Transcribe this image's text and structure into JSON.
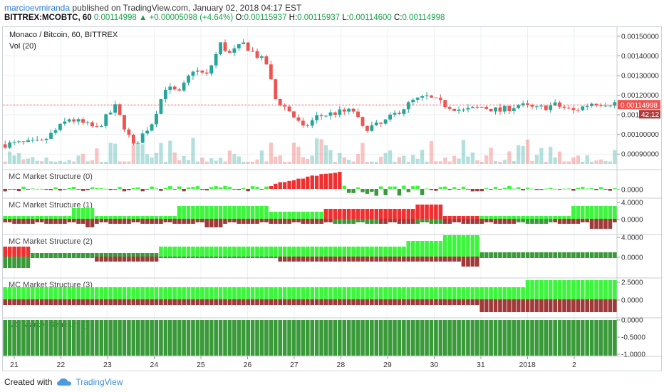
{
  "header": {
    "user": "marcioevmiranda",
    "published": "published on TradingView.com, January 02, 2018 04:17 EST",
    "symbol": "BITTREX:MCOBTC, 60",
    "last": "0.00114998",
    "change": "▲ +0.00005098 (+4.64%)",
    "o_label": "O:",
    "o_val": "0.00115937",
    "h_label": "H:",
    "h_val": "0.00115937",
    "l_label": "L:",
    "l_val": "0.00114600",
    "c_label": "C:",
    "c_val": "0.00114998"
  },
  "footer": {
    "created_with": "Created with",
    "brand": "TradingView"
  },
  "colors": {
    "up": "#26a69a",
    "down": "#ef5350",
    "bright_green": "#3df53d",
    "bright_red": "#f03030",
    "dark_green": "#3a9a3a",
    "dark_red": "#a03a3a",
    "grid": "#eceff2",
    "price_line": "#ef5350"
  },
  "chart_data": [
    {
      "type": "candlestick",
      "title": "Monaco / Bitcoin, 60, BITTREX",
      "indicator": "Vol (20)",
      "ylim": [
        0.00085,
        0.00151
      ],
      "y_ticks": [
        "0.00150000",
        "0.00140000",
        "0.00130000",
        "0.00120000",
        "0.00110000",
        "0.00100000",
        "0.00090000"
      ],
      "x_ticks": [
        "21",
        "22",
        "23",
        "24",
        "25",
        "26",
        "27",
        "28",
        "29",
        "30",
        "31",
        "2018",
        "2"
      ],
      "last_price_label": "0.00114998",
      "countdown_label": "42:12",
      "trend": [
        [
          0,
          0.00095
        ],
        [
          8,
          0.00096
        ],
        [
          14,
          0.00108
        ],
        [
          20,
          0.00103
        ],
        [
          24,
          0.00114
        ],
        [
          28,
          0.00094
        ],
        [
          32,
          0.00106
        ],
        [
          35,
          0.00124
        ],
        [
          38,
          0.00121
        ],
        [
          41,
          0.00133
        ],
        [
          44,
          0.0013
        ],
        [
          47,
          0.00146
        ],
        [
          49,
          0.00141
        ],
        [
          52,
          0.00146
        ],
        [
          55,
          0.0014
        ],
        [
          57,
          0.00136
        ],
        [
          59,
          0.00118
        ],
        [
          62,
          0.00112
        ],
        [
          65,
          0.00103
        ],
        [
          68,
          0.00109
        ],
        [
          72,
          0.00111
        ],
        [
          76,
          0.00112
        ],
        [
          78,
          0.00103
        ],
        [
          82,
          0.00105
        ],
        [
          86,
          0.00112
        ],
        [
          89,
          0.00117
        ],
        [
          92,
          0.00119
        ],
        [
          96,
          0.00115
        ],
        [
          100,
          0.00112
        ],
        [
          104,
          0.00114
        ],
        [
          108,
          0.00112
        ],
        [
          112,
          0.00115
        ],
        [
          116,
          0.00113
        ],
        [
          120,
          0.00115
        ],
        [
          124,
          0.00112
        ],
        [
          128,
          0.00116
        ],
        [
          132,
          0.00116
        ]
      ]
    },
    {
      "type": "histogram",
      "title": "MC Market Structure (0)",
      "y_ticks": [
        "0.0000"
      ]
    },
    {
      "type": "histogram",
      "title": "MC Market Structure (1)",
      "y_ticks": [
        "4.0000",
        "0.0000"
      ]
    },
    {
      "type": "histogram",
      "title": "MC Market Structure (2)",
      "y_ticks": [
        "4.0000",
        "0.0000"
      ]
    },
    {
      "type": "histogram",
      "title": "MC Market Structure (3)",
      "y_ticks": [
        "2.5000",
        "0.0000"
      ]
    },
    {
      "type": "histogram",
      "title": "MC Market Structure (4)",
      "y_ticks": [
        "0.0000",
        "-0.5000",
        "-1.0000"
      ]
    }
  ]
}
